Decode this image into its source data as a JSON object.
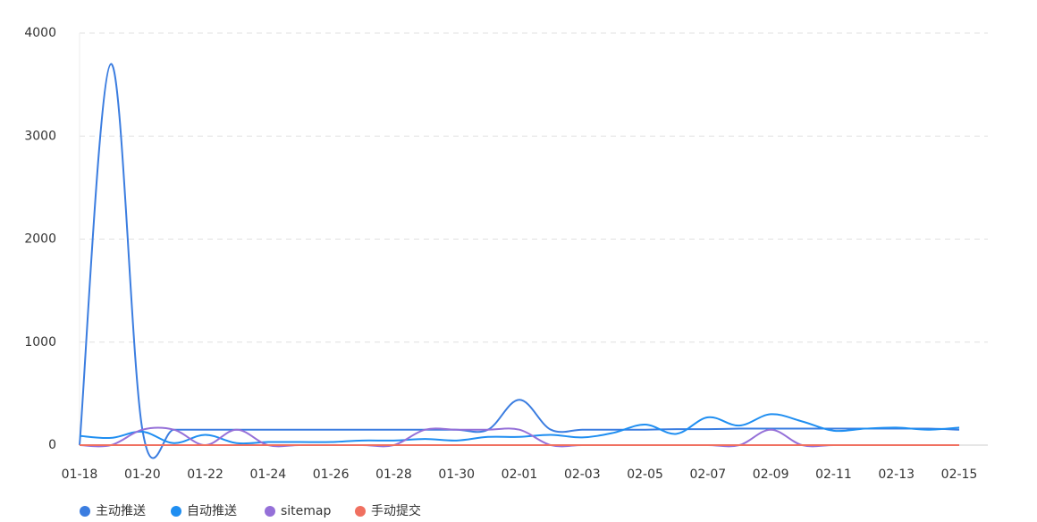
{
  "chart_data": {
    "type": "line",
    "categories": [
      "01-18",
      null,
      "01-20",
      null,
      "01-22",
      null,
      "01-24",
      null,
      "01-26",
      null,
      "01-28",
      null,
      "01-30",
      null,
      "02-01",
      null,
      "02-03",
      null,
      "02-05",
      null,
      "02-07",
      null,
      "02-09",
      null,
      "02-11",
      null,
      "02-13",
      null,
      "02-15"
    ],
    "series": [
      {
        "name": "主动推送",
        "color": "#3b7de0",
        "values": [
          0,
          3700,
          150,
          150,
          150,
          150,
          150,
          150,
          150,
          150,
          150,
          150,
          150,
          150,
          440,
          150,
          150,
          150,
          150,
          155,
          155,
          160,
          160,
          160,
          160,
          160,
          160,
          160,
          150
        ]
      },
      {
        "name": "自动推送",
        "color": "#1f8ef1",
        "values": [
          90,
          70,
          130,
          20,
          100,
          20,
          30,
          30,
          30,
          45,
          45,
          60,
          45,
          80,
          80,
          100,
          75,
          120,
          200,
          110,
          270,
          190,
          300,
          230,
          140,
          160,
          170,
          150,
          170
        ]
      },
      {
        "name": "sitemap",
        "color": "#9570d8",
        "values": [
          0,
          0,
          150,
          150,
          0,
          150,
          0,
          0,
          0,
          0,
          0,
          150,
          150,
          150,
          150,
          0,
          0,
          0,
          0,
          0,
          0,
          0,
          150,
          0,
          0,
          0,
          0,
          0,
          0
        ]
      },
      {
        "name": "手动提交",
        "color": "#f07060",
        "values": [
          0,
          0,
          0,
          0,
          0,
          0,
          0,
          0,
          0,
          0,
          0,
          0,
          0,
          0,
          0,
          0,
          0,
          0,
          0,
          0,
          0,
          0,
          0,
          0,
          0,
          0,
          0,
          0,
          0
        ]
      }
    ],
    "ylim": [
      0,
      4000
    ],
    "yticks": [
      0,
      1000,
      2000,
      3000,
      4000
    ],
    "grid": true
  }
}
